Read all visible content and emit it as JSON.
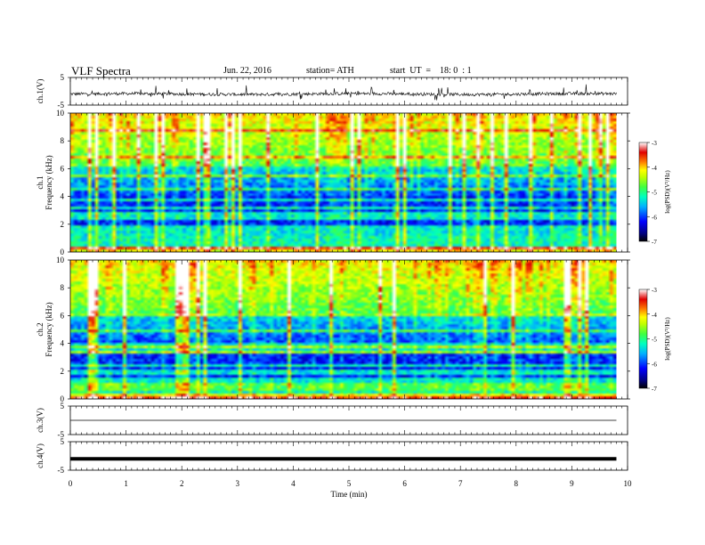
{
  "header": {
    "title": "VLF Spectra",
    "date": "Jun. 22, 2016",
    "station": "station= ATH",
    "start": "start  UT  =    18: 0  : 1"
  },
  "chart_data": [
    {
      "type": "line",
      "ylabel": "ch.1(V)",
      "ylim": [
        -5,
        5
      ],
      "yticks": [
        "5",
        "-5"
      ],
      "x_range_min": [
        0,
        9.8
      ],
      "description_series": "noisy voltage trace around -1 V with sferic spikes"
    },
    {
      "type": "heatmap",
      "ylabel_top": "ch.1",
      "ylabel": "Frequency  (kHz)",
      "ylim": [
        0,
        10
      ],
      "yticks": [
        "0",
        "2",
        "4",
        "6",
        "8",
        "10"
      ],
      "xlim": [
        0,
        10
      ],
      "colorbar": {
        "label": "log(PSD)(V²/Hz)",
        "range": [
          -7,
          -3
        ],
        "ticks": [
          "-3",
          "-4",
          "-5",
          "-6",
          "-7"
        ]
      }
    },
    {
      "type": "heatmap",
      "ylabel_top": "ch.2",
      "ylabel": "Frequency  (kHz)",
      "ylim": [
        0,
        10
      ],
      "yticks": [
        "0",
        "2",
        "4",
        "6",
        "8",
        "10"
      ],
      "xlim": [
        0,
        10
      ],
      "colorbar": {
        "label": "log(PSD)(V²/Hz)",
        "range": [
          -7,
          -3
        ],
        "ticks": [
          "-3",
          "-4",
          "-5",
          "-6",
          "-7"
        ]
      }
    },
    {
      "type": "line",
      "ylabel": "ch.3(V)",
      "ylim": [
        -5,
        5
      ],
      "yticks": [
        "5",
        "-5"
      ],
      "level": 0
    },
    {
      "type": "line",
      "ylabel": "ch.4(V)",
      "ylim": [
        -5,
        5
      ],
      "yticks": [
        "5",
        "-5"
      ],
      "level": -1
    }
  ],
  "xaxis": {
    "label": "Time  (min)",
    "ticks": [
      "0",
      "1",
      "2",
      "3",
      "4",
      "5",
      "6",
      "7",
      "8",
      "9",
      "10"
    ],
    "range": [
      0,
      10
    ],
    "data_end": 9.8
  }
}
